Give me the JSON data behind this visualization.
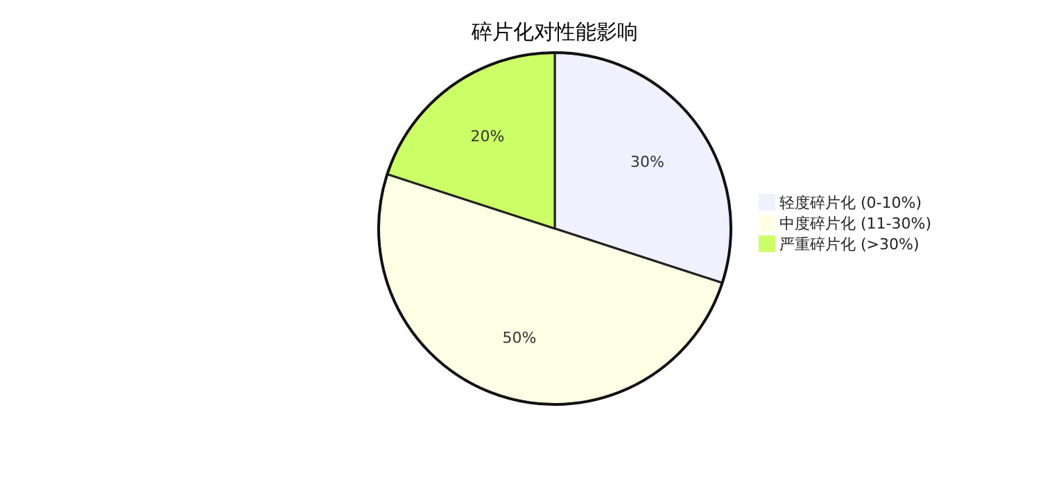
{
  "chart_data": {
    "type": "pie",
    "title": "碎片化对性能影响",
    "categories": [
      "轻度碎片化 (0-10%)",
      "中度碎片化 (11-30%)",
      "严重碎片化 (>30%)"
    ],
    "values": [
      30,
      50,
      20
    ],
    "value_labels": [
      "30%",
      "50%",
      "20%"
    ],
    "colors": [
      "#f0f0ff",
      "#ffffe6",
      "#ccff66"
    ],
    "legend": "right"
  }
}
